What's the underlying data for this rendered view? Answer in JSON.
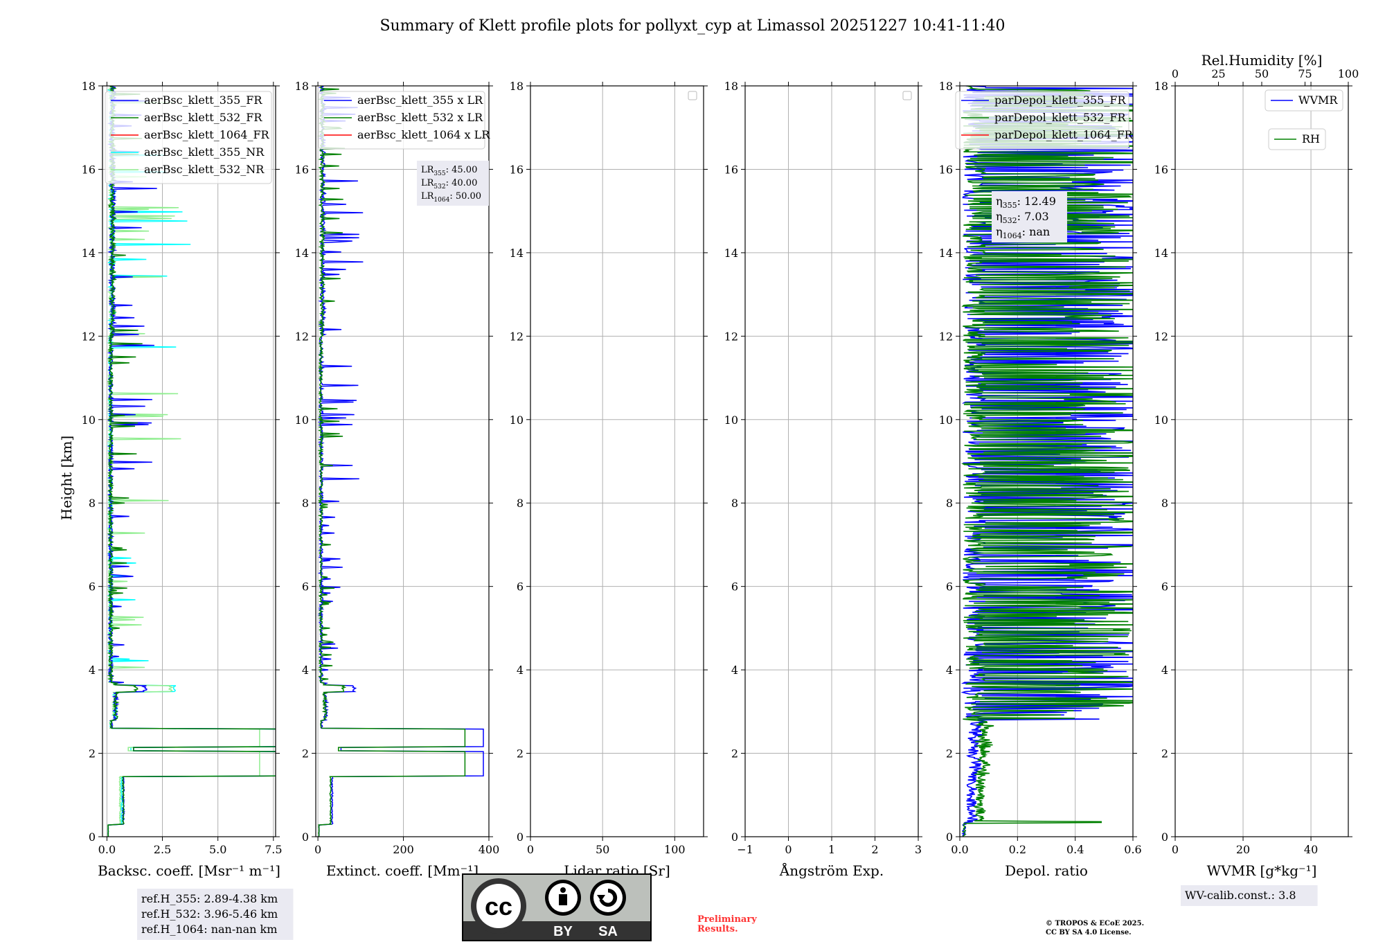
{
  "title": "Summary of Klett profile plots for pollyxt_cyp at Limassol 20251227 10:41-11:40",
  "colors": {
    "blue": "#0000ff",
    "green": "#008000",
    "red": "#ff0000",
    "cyan": "#00ffff",
    "lightgreen": "#90ee90",
    "grid": "#b0b0b0",
    "preliminary": "#ff0000",
    "boxbg": "#eaeaf2"
  },
  "chart_data": [
    {
      "name": "backscatter",
      "type": "line",
      "xlabel": "Backsc. coeff. [Msr⁻¹ m⁻¹]",
      "ylabel": "Height [km]",
      "xlim": [
        -0.2,
        7.6
      ],
      "ylim": [
        0,
        18
      ],
      "xticks": [
        0,
        2.5,
        5.0,
        7.5
      ],
      "xticklabels": [
        "0.0",
        "2.5",
        "5.0",
        "7.5"
      ],
      "yticks": [
        0,
        2,
        4,
        6,
        8,
        10,
        12,
        14,
        16,
        18
      ],
      "grid": true,
      "legend": {
        "position": "top-right",
        "entries": [
          {
            "label": "aerBsc_klett_355_FR",
            "color": "blue"
          },
          {
            "label": "aerBsc_klett_532_FR",
            "color": "green"
          },
          {
            "label": "aerBsc_klett_1064_FR",
            "color": "red"
          },
          {
            "label": "aerBsc_klett_355_NR",
            "color": "cyan"
          },
          {
            "label": "aerBsc_klett_532_NR",
            "color": "lightgreen"
          }
        ]
      },
      "series": [
        {
          "name": "aerBsc_klett_355_NR",
          "color": "cyan",
          "kind": "bsc",
          "scale": 0.9,
          "hi": 3.0,
          "seed": 11,
          "spikeRate": 0.02
        },
        {
          "name": "aerBsc_klett_532_NR",
          "color": "lightgreen",
          "kind": "bsc",
          "scale": 0.8,
          "hi": 2.8,
          "seed": 12,
          "spikeRate": 0.02
        },
        {
          "name": "aerBsc_klett_355_FR",
          "color": "blue",
          "kind": "bsc",
          "scale": 1.0,
          "hi": 1.6,
          "seed": 13,
          "spikeRate": 0.05
        },
        {
          "name": "aerBsc_klett_532_FR",
          "color": "green",
          "kind": "bsc",
          "scale": 1.0,
          "hi": 1.2,
          "seed": 14,
          "spikeRate": 0.03
        }
      ],
      "ref_box": [
        "ref.H_355: 2.89-4.38 km",
        "ref.H_532: 3.96-5.46 km",
        "ref.H_1064: nan-nan km"
      ]
    },
    {
      "name": "extinction",
      "type": "line",
      "xlabel": "Extinct. coeff. [Mm⁻¹]",
      "xlim": [
        -5,
        400
      ],
      "ylim": [
        0,
        18
      ],
      "xticks": [
        0,
        200,
        400
      ],
      "xticklabels": [
        "0",
        "200",
        "400"
      ],
      "yticks": [
        0,
        2,
        4,
        6,
        8,
        10,
        12,
        14,
        16,
        18
      ],
      "grid": true,
      "legend": {
        "position": "top-right",
        "entries": [
          {
            "label": "aerBsc_klett_355 x LR",
            "color": "blue"
          },
          {
            "label": "aerBsc_klett_532 x LR",
            "color": "green"
          },
          {
            "label": "aerBsc_klett_1064 x LR",
            "color": "red"
          }
        ]
      },
      "series": [
        {
          "name": "aerBsc_klett_355 x LR",
          "color": "blue",
          "kind": "ext",
          "scale": 45,
          "hi": 80,
          "seed": 21,
          "spikeRate": 0.05
        },
        {
          "name": "aerBsc_klett_532 x LR",
          "color": "green",
          "kind": "ext",
          "scale": 40,
          "hi": 55,
          "seed": 22,
          "spikeRate": 0.03
        }
      ],
      "lr_box": {
        "lines": [
          {
            "prefix": "LR",
            "sub": "355",
            "value": ": 45.00"
          },
          {
            "prefix": "LR",
            "sub": "532",
            "value": ": 40.00"
          },
          {
            "prefix": "LR",
            "sub": "1064",
            "value": ": 50.00"
          }
        ]
      }
    },
    {
      "name": "lidar_ratio",
      "type": "line",
      "xlabel": "Lidar ratio [Sr]",
      "xlim": [
        0,
        120
      ],
      "ylim": [
        0,
        18
      ],
      "xticks": [
        0,
        50,
        100
      ],
      "xticklabels": [
        "0",
        "50",
        "100"
      ],
      "yticks": [
        0,
        2,
        4,
        6,
        8,
        10,
        12,
        14,
        16,
        18
      ],
      "grid": true,
      "legend": {
        "position": "top-right",
        "entries": []
      },
      "series": []
    },
    {
      "name": "angstrom",
      "type": "line",
      "xlabel": "Ångström Exp.",
      "xlim": [
        -1,
        3
      ],
      "ylim": [
        0,
        18
      ],
      "xticks": [
        -1,
        0,
        1,
        2,
        3
      ],
      "xticklabels": [
        "−1",
        "0",
        "1",
        "2",
        "3"
      ],
      "yticks": [
        0,
        2,
        4,
        6,
        8,
        10,
        12,
        14,
        16,
        18
      ],
      "grid": true,
      "legend": {
        "position": "top-right",
        "entries": []
      },
      "series": []
    },
    {
      "name": "depol",
      "type": "line",
      "xlabel": "Depol. ratio",
      "xlim": [
        0,
        0.6
      ],
      "ylim": [
        0,
        18
      ],
      "xticks": [
        0,
        0.2,
        0.4,
        0.6
      ],
      "xticklabels": [
        "0.0",
        "0.2",
        "0.4",
        "0.6"
      ],
      "yticks": [
        0,
        2,
        4,
        6,
        8,
        10,
        12,
        14,
        16,
        18
      ],
      "grid": true,
      "legend": {
        "position": "top-right",
        "entries": [
          {
            "label": "parDepol_klett_355_FR",
            "color": "blue"
          },
          {
            "label": "parDepol_klett_532_FR",
            "color": "green"
          },
          {
            "label": "parDepol_klett_1064_FR",
            "color": "red"
          }
        ]
      },
      "series": [
        {
          "name": "parDepol_klett_355_FR",
          "color": "blue",
          "kind": "depol",
          "seed": 31
        },
        {
          "name": "parDepol_klett_532_FR",
          "color": "green",
          "kind": "depol",
          "seed": 32
        }
      ],
      "eta_box": {
        "lines": [
          {
            "prefix": "η",
            "sub": "355",
            "value": ": 12.49"
          },
          {
            "prefix": "η",
            "sub": "532",
            "value": ": 7.03"
          },
          {
            "prefix": "η",
            "sub": "1064",
            "value": ": nan"
          }
        ]
      }
    },
    {
      "name": "wvmr",
      "type": "line",
      "xlabel": "WVMR [g*kg⁻¹]",
      "top_xlabel": "Rel.Humidity [%]",
      "xlim": [
        0,
        51
      ],
      "ylim": [
        0,
        18
      ],
      "xticks": [
        0,
        20,
        40
      ],
      "xticklabels": [
        "0",
        "20",
        "40"
      ],
      "top_xlim": [
        0,
        100
      ],
      "top_xticks": [
        0,
        25,
        50,
        75,
        100
      ],
      "top_xticklabels": [
        "0",
        "25",
        "50",
        "75",
        "100"
      ],
      "yticks": [
        0,
        2,
        4,
        6,
        8,
        10,
        12,
        14,
        16,
        18
      ],
      "grid": true,
      "legend": {
        "position": "top-right",
        "entries": [
          {
            "label": "WVMR",
            "color": "blue"
          },
          {
            "label": "RH",
            "color": "green"
          }
        ]
      },
      "series": [],
      "calib_box": "WV-calib.const.: 3.8"
    }
  ],
  "license": {
    "cc": "cc",
    "by": "BY",
    "sa": "SA"
  },
  "preliminary": [
    "Preliminary",
    "Results."
  ],
  "copyright": [
    "© TROPOS & ECoE 2025.",
    "CC BY SA 4.0 License."
  ]
}
